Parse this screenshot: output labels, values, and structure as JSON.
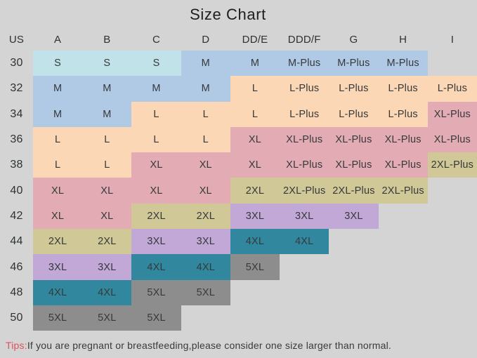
{
  "chart_data": {
    "type": "table",
    "title": "Size Chart",
    "columns": [
      "US",
      "A",
      "B",
      "C",
      "D",
      "DD/E",
      "DDD/F",
      "G",
      "H",
      "I"
    ],
    "tier_colors": {
      "S": "#c2e2ea",
      "M": "#b0c9e4",
      "L": "#fbd7b5",
      "XL": "#e3acb4",
      "2XL": "#d0c896",
      "3XL": "#c1a8d6",
      "4XL": "#31889e",
      "5XL": "#8d8d8d"
    },
    "rows": [
      {
        "us": "30",
        "cells": [
          {
            "label": "S",
            "tier": "S"
          },
          {
            "label": "S",
            "tier": "S"
          },
          {
            "label": "S",
            "tier": "S"
          },
          {
            "label": "M",
            "tier": "M"
          },
          {
            "label": "M",
            "tier": "M"
          },
          {
            "label": "M-Plus",
            "tier": "M"
          },
          {
            "label": "M-Plus",
            "tier": "M"
          },
          {
            "label": "M-Plus",
            "tier": "M"
          },
          null
        ]
      },
      {
        "us": "32",
        "cells": [
          {
            "label": "M",
            "tier": "M"
          },
          {
            "label": "M",
            "tier": "M"
          },
          {
            "label": "M",
            "tier": "M"
          },
          {
            "label": "M",
            "tier": "M"
          },
          {
            "label": "L",
            "tier": "L"
          },
          {
            "label": "L-Plus",
            "tier": "L"
          },
          {
            "label": "L-Plus",
            "tier": "L"
          },
          {
            "label": "L-Plus",
            "tier": "L"
          },
          {
            "label": "L-Plus",
            "tier": "L"
          }
        ]
      },
      {
        "us": "34",
        "cells": [
          {
            "label": "M",
            "tier": "M"
          },
          {
            "label": "M",
            "tier": "M"
          },
          {
            "label": "L",
            "tier": "L"
          },
          {
            "label": "L",
            "tier": "L"
          },
          {
            "label": "L",
            "tier": "L"
          },
          {
            "label": "L-Plus",
            "tier": "L"
          },
          {
            "label": "L-Plus",
            "tier": "L"
          },
          {
            "label": "L-Plus",
            "tier": "L"
          },
          {
            "label": "XL-Plus",
            "tier": "XL"
          }
        ]
      },
      {
        "us": "36",
        "cells": [
          {
            "label": "L",
            "tier": "L"
          },
          {
            "label": "L",
            "tier": "L"
          },
          {
            "label": "L",
            "tier": "L"
          },
          {
            "label": "L",
            "tier": "L"
          },
          {
            "label": "XL",
            "tier": "XL"
          },
          {
            "label": "XL-Plus",
            "tier": "XL"
          },
          {
            "label": "XL-Plus",
            "tier": "XL"
          },
          {
            "label": "XL-Plus",
            "tier": "XL"
          },
          {
            "label": "XL-Plus",
            "tier": "XL"
          }
        ]
      },
      {
        "us": "38",
        "cells": [
          {
            "label": "L",
            "tier": "L"
          },
          {
            "label": "L",
            "tier": "L"
          },
          {
            "label": "XL",
            "tier": "XL"
          },
          {
            "label": "XL",
            "tier": "XL"
          },
          {
            "label": "XL",
            "tier": "XL"
          },
          {
            "label": "XL-Plus",
            "tier": "XL"
          },
          {
            "label": "XL-Plus",
            "tier": "XL"
          },
          {
            "label": "XL-Plus",
            "tier": "XL"
          },
          {
            "label": "2XL-Plus",
            "tier": "2XL"
          }
        ]
      },
      {
        "us": "40",
        "cells": [
          {
            "label": "XL",
            "tier": "XL"
          },
          {
            "label": "XL",
            "tier": "XL"
          },
          {
            "label": "XL",
            "tier": "XL"
          },
          {
            "label": "XL",
            "tier": "XL"
          },
          {
            "label": "2XL",
            "tier": "2XL"
          },
          {
            "label": "2XL-Plus",
            "tier": "2XL"
          },
          {
            "label": "2XL-Plus",
            "tier": "2XL"
          },
          {
            "label": "2XL-Plus",
            "tier": "2XL"
          },
          null
        ]
      },
      {
        "us": "42",
        "cells": [
          {
            "label": "XL",
            "tier": "XL"
          },
          {
            "label": "XL",
            "tier": "XL"
          },
          {
            "label": "2XL",
            "tier": "2XL"
          },
          {
            "label": "2XL",
            "tier": "2XL"
          },
          {
            "label": "3XL",
            "tier": "3XL"
          },
          {
            "label": "3XL",
            "tier": "3XL"
          },
          {
            "label": "3XL",
            "tier": "3XL"
          },
          null,
          null
        ]
      },
      {
        "us": "44",
        "cells": [
          {
            "label": "2XL",
            "tier": "2XL"
          },
          {
            "label": "2XL",
            "tier": "2XL"
          },
          {
            "label": "3XL",
            "tier": "3XL"
          },
          {
            "label": "3XL",
            "tier": "3XL"
          },
          {
            "label": "4XL",
            "tier": "4XL"
          },
          {
            "label": "4XL",
            "tier": "4XL"
          },
          null,
          null,
          null
        ]
      },
      {
        "us": "46",
        "cells": [
          {
            "label": "3XL",
            "tier": "3XL"
          },
          {
            "label": "3XL",
            "tier": "3XL"
          },
          {
            "label": "4XL",
            "tier": "4XL"
          },
          {
            "label": "4XL",
            "tier": "4XL"
          },
          {
            "label": "5XL",
            "tier": "5XL"
          },
          null,
          null,
          null,
          null
        ]
      },
      {
        "us": "48",
        "cells": [
          {
            "label": "4XL",
            "tier": "4XL"
          },
          {
            "label": "4XL",
            "tier": "4XL"
          },
          {
            "label": "5XL",
            "tier": "5XL"
          },
          {
            "label": "5XL",
            "tier": "5XL"
          },
          null,
          null,
          null,
          null,
          null
        ]
      },
      {
        "us": "50",
        "cells": [
          {
            "label": "5XL",
            "tier": "5XL"
          },
          {
            "label": "5XL",
            "tier": "5XL"
          },
          {
            "label": "5XL",
            "tier": "5XL"
          },
          null,
          null,
          null,
          null,
          null,
          null
        ]
      }
    ]
  },
  "tips": {
    "label": "Tips:",
    "text": "If you are pregnant or breastfeeding,please consider one size larger than normal."
  },
  "colors": {
    "background": "#d4d4d4",
    "text": "#36393b",
    "title": "#1d1d1d",
    "tips_label": "#e0515e"
  }
}
